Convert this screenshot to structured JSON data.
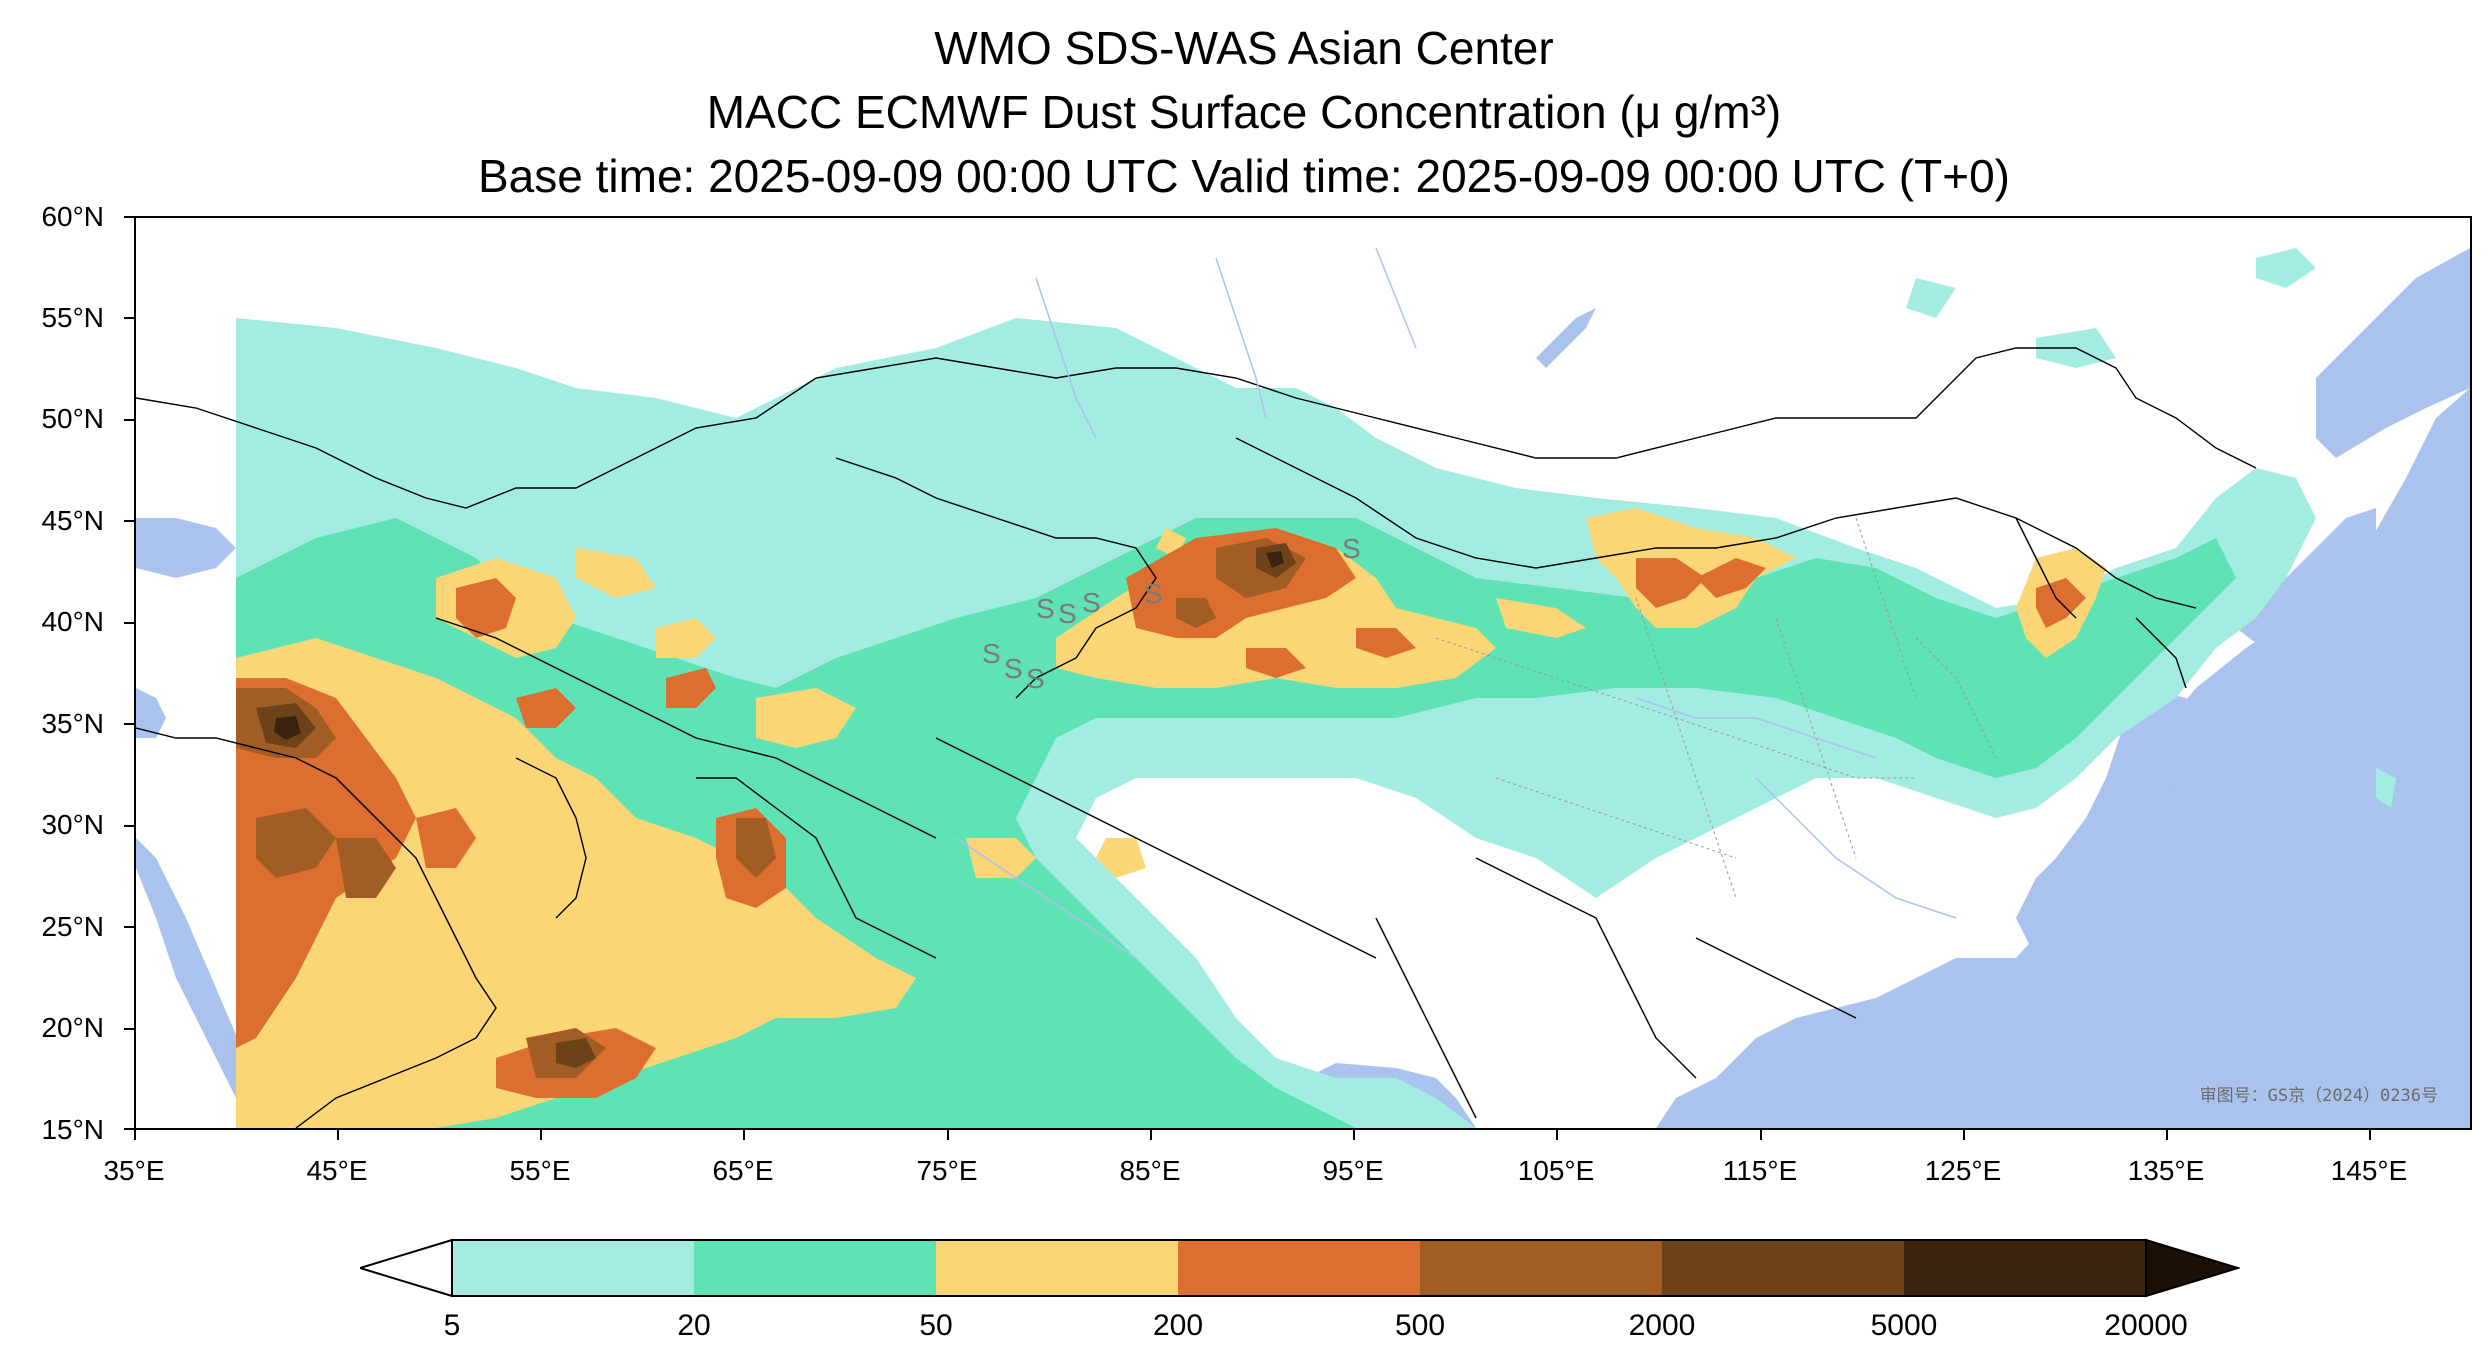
{
  "title": {
    "line1": "WMO SDS-WAS Asian Center",
    "line2": "MACC ECMWF Dust Surface Concentration (μ g/m³)",
    "line3": "Base time: 2025-09-09 00:00 UTC Valid time: 2025-09-09 00:00 UTC (T+0)"
  },
  "map_extent": {
    "lon": [
      35,
      150
    ],
    "lat": [
      15,
      60
    ]
  },
  "lat_ticks": [
    "60°N",
    "55°N",
    "50°N",
    "45°N",
    "40°N",
    "35°N",
    "30°N",
    "25°N",
    "20°N",
    "15°N"
  ],
  "lon_ticks": [
    "35°E",
    "45°E",
    "55°E",
    "65°E",
    "75°E",
    "85°E",
    "95°E",
    "105°E",
    "115°E",
    "125°E",
    "135°E",
    "145°E"
  ],
  "review_number": "审图号：GS京（2024）0236号",
  "colorbar": {
    "labels": [
      "5",
      "20",
      "50",
      "200",
      "500",
      "2000",
      "5000",
      "20000"
    ],
    "under_color": "#ffffff",
    "over_color": "#1b0f06",
    "colors": [
      "#a3ece1",
      "#5fe3b5",
      "#fad677",
      "#dc6f30",
      "#a25d24",
      "#6e4218",
      "#3a2410"
    ]
  },
  "colors": {
    "ocean": "#a9c3ee",
    "land": "#ffffff",
    "border": "#000000",
    "river": "#a9c3ee"
  }
}
